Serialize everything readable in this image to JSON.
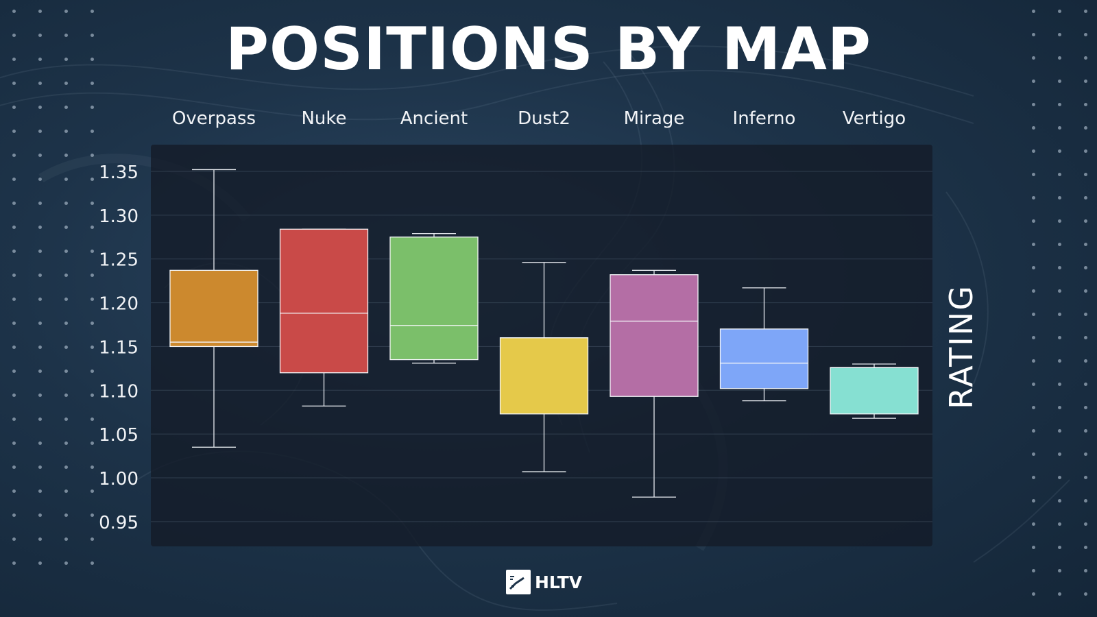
{
  "title": "POSITIONS BY MAP",
  "brand": "HLTV",
  "chart_data": {
    "type": "box",
    "title": "POSITIONS BY MAP",
    "xlabel": "",
    "ylabel": "RATING",
    "y_ticks": [
      "1.35",
      "1.30",
      "1.25",
      "1.20",
      "1.15",
      "1.10",
      "1.05",
      "1.00",
      "0.95"
    ],
    "ylim": [
      0.925,
      1.38
    ],
    "grid": true,
    "categories": [
      "Overpass",
      "Nuke",
      "Ancient",
      "Dust2",
      "Mirage",
      "Inferno",
      "Vertigo"
    ],
    "boxes": [
      {
        "label": "Overpass",
        "min": 1.035,
        "q1": 1.15,
        "median": 1.155,
        "q3": 1.237,
        "max": 1.352,
        "color": "#cc892e"
      },
      {
        "label": "Nuke",
        "min": 1.082,
        "q1": 1.12,
        "median": 1.188,
        "q3": 1.284,
        "max": 1.284,
        "color": "#c94a48"
      },
      {
        "label": "Ancient",
        "min": 1.131,
        "q1": 1.135,
        "median": 1.174,
        "q3": 1.275,
        "max": 1.279,
        "color": "#7bbf6a"
      },
      {
        "label": "Dust2",
        "min": 1.007,
        "q1": 1.073,
        "median": 1.16,
        "q3": 1.16,
        "max": 1.246,
        "color": "#e5c94a"
      },
      {
        "label": "Mirage",
        "min": 0.978,
        "q1": 1.093,
        "median": 1.179,
        "q3": 1.232,
        "max": 1.237,
        "color": "#b46ea5"
      },
      {
        "label": "Inferno",
        "min": 1.088,
        "q1": 1.102,
        "median": 1.131,
        "q3": 1.17,
        "max": 1.217,
        "color": "#7ea6f8"
      },
      {
        "label": "Vertigo",
        "min": 1.068,
        "q1": 1.073,
        "median": 1.126,
        "q3": 1.126,
        "max": 1.13,
        "color": "#86e0d2"
      }
    ]
  }
}
